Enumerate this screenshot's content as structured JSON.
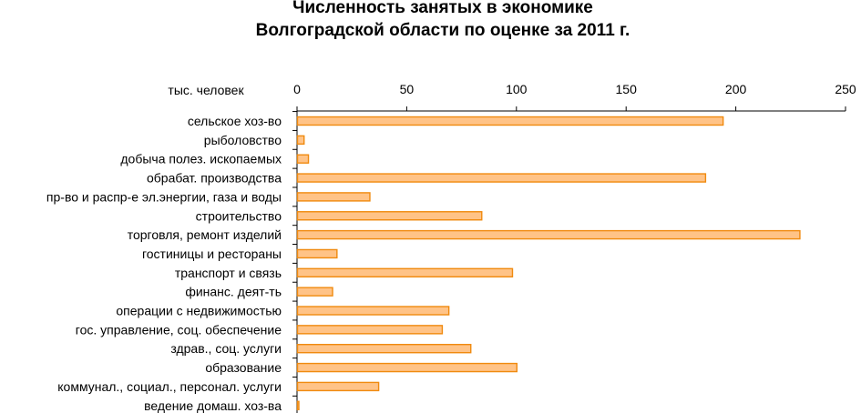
{
  "chart_data": {
    "type": "bar",
    "orientation": "horizontal",
    "title": [
      "Численность занятых в экономике",
      "Волгоградской области по оценке за 2011 г."
    ],
    "xlabel": "тыс. человек",
    "xlim": [
      0,
      250
    ],
    "xticks": [
      "0",
      "50",
      "100",
      "150",
      "200",
      "250"
    ],
    "xaxis_position": "top",
    "grid": false,
    "legend": "none",
    "categories": [
      "сельское хоз-во",
      "рыболовство",
      "добыча полез. ископаемых",
      "обрабат. производства",
      "пр-во и распр-е эл.энергии, газа и воды",
      "строительство",
      "торговля, ремонт изделий",
      "гостиницы и рестораны",
      "транспорт и связь",
      "финанс. деят-ть",
      "операции с недвижимостью",
      "гос. управление, соц. обеспечение",
      "здрав., соц. услуги",
      "образование",
      "коммунал., социал., персонал. услуги",
      "ведение домаш. хоз-ва"
    ],
    "values": [
      194,
      3,
      5,
      186,
      33,
      84,
      229,
      18,
      98,
      16,
      69,
      66,
      79,
      100,
      37,
      0.5
    ],
    "colors": {
      "bar_fill": "#FFC387",
      "bar_stroke": "#F08A0F",
      "axis": "#000000"
    }
  }
}
